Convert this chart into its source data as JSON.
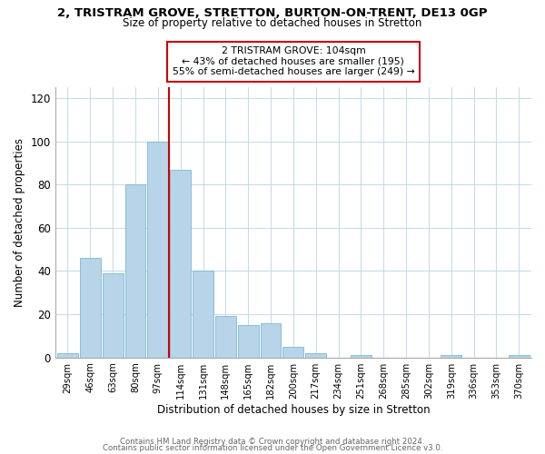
{
  "title": "2, TRISTRAM GROVE, STRETTON, BURTON-ON-TRENT, DE13 0GP",
  "subtitle": "Size of property relative to detached houses in Stretton",
  "xlabel": "Distribution of detached houses by size in Stretton",
  "ylabel": "Number of detached properties",
  "bar_labels": [
    "29sqm",
    "46sqm",
    "63sqm",
    "80sqm",
    "97sqm",
    "114sqm",
    "131sqm",
    "148sqm",
    "165sqm",
    "182sqm",
    "200sqm",
    "217sqm",
    "234sqm",
    "251sqm",
    "268sqm",
    "285sqm",
    "302sqm",
    "319sqm",
    "336sqm",
    "353sqm",
    "370sqm"
  ],
  "bar_heights": [
    2,
    46,
    39,
    80,
    100,
    87,
    40,
    19,
    15,
    16,
    5,
    2,
    0,
    1,
    0,
    0,
    0,
    1,
    0,
    0,
    1
  ],
  "bar_color": "#b8d4e8",
  "bar_edge_color": "#7ab8d4",
  "vline_x": 4.5,
  "vline_color": "#cc0000",
  "annotation_box_text": "2 TRISTRAM GROVE: 104sqm\n← 43% of detached houses are smaller (195)\n55% of semi-detached houses are larger (249) →",
  "annotation_box_color": "#ffffff",
  "annotation_box_edge_color": "#cc0000",
  "ylim": [
    0,
    125
  ],
  "yticks": [
    0,
    20,
    40,
    60,
    80,
    100,
    120
  ],
  "footer_line1": "Contains HM Land Registry data © Crown copyright and database right 2024.",
  "footer_line2": "Contains public sector information licensed under the Open Government Licence v3.0.",
  "background_color": "#ffffff",
  "grid_color": "#c8dce8"
}
